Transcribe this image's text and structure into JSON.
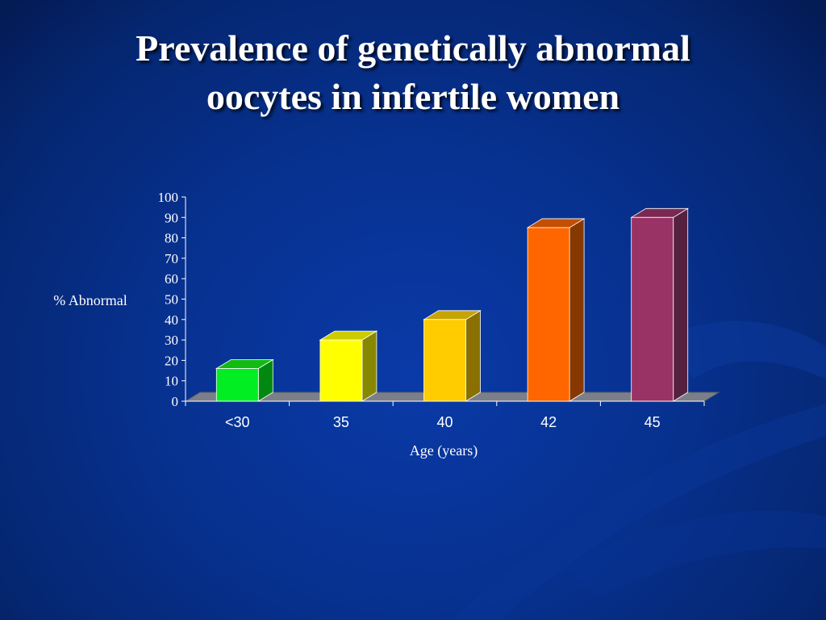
{
  "slide": {
    "title_line1": "Prevalence of genetically abnormal",
    "title_line2": "oocytes in infertile women"
  },
  "colors": {
    "background": "#07318f",
    "floor": "#7a7f8a"
  },
  "chart_data": {
    "type": "bar",
    "style": "3d-column",
    "title": "",
    "xlabel": "Age (years)",
    "ylabel": "% Abnormal",
    "ylim": [
      0,
      100
    ],
    "yticks": [
      0,
      10,
      20,
      30,
      40,
      50,
      60,
      70,
      80,
      90,
      100
    ],
    "categories": [
      "<30",
      "35",
      "40",
      "42",
      "45"
    ],
    "values": [
      16,
      30,
      40,
      85,
      90
    ],
    "bar_colors": [
      {
        "front": "#00ee22",
        "top": "#11bb11",
        "side": "#008811"
      },
      {
        "front": "#ffff00",
        "top": "#cccc00",
        "side": "#888800"
      },
      {
        "front": "#ffcc00",
        "top": "#c9a300",
        "side": "#8a7000"
      },
      {
        "front": "#ff6600",
        "top": "#c44f00",
        "side": "#873800"
      },
      {
        "front": "#993366",
        "top": "#7a2851",
        "side": "#55213f"
      }
    ],
    "grid": false,
    "legend": "none"
  }
}
